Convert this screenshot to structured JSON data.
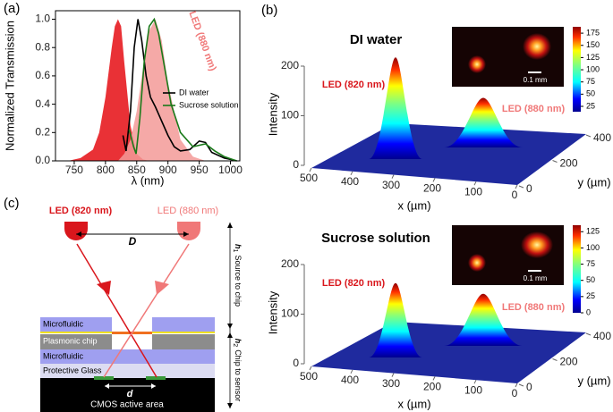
{
  "chart_data": {
    "type": "line",
    "label": "(a)",
    "ylabel": "Normalized Transmission",
    "xlabel": "λ (nm)",
    "xlim": [
      720,
      1015
    ],
    "ylim": [
      0,
      1.06
    ],
    "xticks": [
      750,
      800,
      850,
      900,
      950,
      1000
    ],
    "yticks": [
      {
        "value": 0,
        "label": "0.0"
      },
      0.2,
      0.4,
      0.6,
      0.8,
      {
        "value": 1,
        "label": "1.0"
      }
    ],
    "bands": [
      {
        "name": "LED (820 nm)",
        "color": "#e8262b",
        "x": [
          740,
          760,
          780,
          790,
          800,
          810,
          815,
          820,
          825,
          830,
          840,
          850,
          860,
          870
        ],
        "values": [
          0,
          0.02,
          0.08,
          0.2,
          0.45,
          0.8,
          0.95,
          1.0,
          0.95,
          0.7,
          0.25,
          0.05,
          0.01,
          0
        ]
      },
      {
        "name": "LED (880 nm)",
        "color": "#f39a98",
        "x": [
          820,
          830,
          840,
          850,
          860,
          870,
          880,
          890,
          900,
          920,
          940,
          960
        ],
        "values": [
          0,
          0.05,
          0.15,
          0.35,
          0.65,
          0.92,
          1.0,
          0.85,
          0.55,
          0.15,
          0.03,
          0
        ]
      }
    ],
    "series": [
      {
        "name": "DI water",
        "color": "#000000",
        "x": [
          828,
          833,
          840,
          846,
          852,
          858,
          865,
          872,
          880,
          890,
          900,
          910,
          920,
          935,
          950,
          960,
          970,
          990,
          1010
        ],
        "values": [
          0.18,
          0.07,
          0.35,
          0.8,
          1.0,
          0.85,
          0.6,
          0.45,
          0.38,
          0.28,
          0.18,
          0.1,
          0.07,
          0.08,
          0.14,
          0.13,
          0.06,
          0.02,
          0
        ]
      },
      {
        "name": "Sucrose solution",
        "color": "#1a7a1a",
        "x": [
          838,
          845,
          849,
          855,
          862,
          870,
          878,
          885,
          895,
          905,
          920,
          940,
          960,
          975,
          990,
          1010
        ],
        "values": [
          0.22,
          0.1,
          0.05,
          0.3,
          0.7,
          0.95,
          1.0,
          0.9,
          0.65,
          0.4,
          0.2,
          0.1,
          0.12,
          0.07,
          0.03,
          0
        ]
      }
    ]
  },
  "panel_b": {
    "label": "(b)",
    "plots": [
      {
        "title": "DI water",
        "zlabel": "Intensity",
        "xlabel": "x (µm)",
        "ylabel": "y (µm)",
        "xticks": [
          500,
          400,
          300,
          200,
          100,
          0
        ],
        "yticks": [
          0,
          200,
          400
        ],
        "zticks": [
          0,
          100,
          200
        ],
        "peaks": [
          {
            "label": "LED (820 nm)",
            "height": 205
          },
          {
            "label": "LED (880 nm)",
            "height": 100
          }
        ],
        "colorbar": {
          "lim": [
            14,
            188
          ],
          "ticks": [
            25,
            50,
            75,
            100,
            125,
            150,
            175
          ]
        },
        "scalebar": "0.1 mm"
      },
      {
        "title": "Sucrose solution",
        "zlabel": "Intensity",
        "xlabel": "x (µm)",
        "ylabel": "y (µm)",
        "xticks": [
          500,
          400,
          300,
          200,
          100,
          0
        ],
        "yticks": [
          0,
          200,
          400
        ],
        "zticks": [
          0,
          100,
          200
        ],
        "peaks": [
          {
            "label": "LED (820 nm)",
            "height": 150
          },
          {
            "label": "LED (880 nm)",
            "height": 105
          }
        ],
        "colorbar": {
          "lim": [
            0,
            135
          ],
          "ticks": [
            0,
            25,
            50,
            75,
            100,
            125
          ]
        },
        "scalebar": "0.1 mm"
      }
    ]
  },
  "panel_c": {
    "label": "(c)",
    "led_left": "LED (820 nm)",
    "led_right": "LED (880 nm)",
    "distance_leds": "D",
    "h1": {
      "symbol": "h",
      "sub": "1",
      "text": "Source to chip"
    },
    "h2": {
      "symbol": "h",
      "sub": "2",
      "text": "Chip to sensor"
    },
    "layers": [
      "Microfluidic",
      "Plasmonic chip",
      "Microfluidic",
      "Protective Glass"
    ],
    "distance_sensor": "d",
    "sensor": "CMOS active area"
  }
}
